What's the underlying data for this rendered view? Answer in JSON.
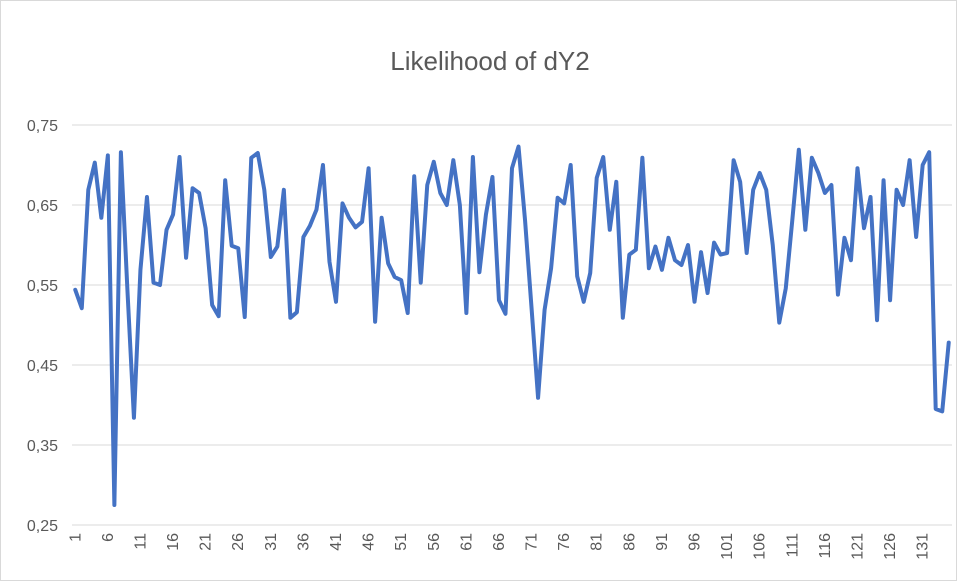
{
  "chart_data": {
    "type": "line",
    "title": "Likelihood of dY2",
    "categories": [
      "1",
      null,
      null,
      null,
      null,
      "6",
      null,
      null,
      null,
      null,
      "11",
      null,
      null,
      null,
      null,
      "16",
      null,
      null,
      null,
      null,
      "21",
      null,
      null,
      null,
      null,
      "26",
      null,
      null,
      null,
      null,
      "31",
      null,
      null,
      null,
      null,
      "36",
      null,
      null,
      null,
      null,
      "41",
      null,
      null,
      null,
      null,
      "46",
      null,
      null,
      null,
      null,
      "51",
      null,
      null,
      null,
      null,
      "56",
      null,
      null,
      null,
      null,
      "61",
      null,
      null,
      null,
      null,
      "66",
      null,
      null,
      null,
      null,
      "71",
      null,
      null,
      null,
      null,
      "76",
      null,
      null,
      null,
      null,
      "81",
      null,
      null,
      null,
      null,
      "86",
      null,
      null,
      null,
      null,
      "91",
      null,
      null,
      null,
      null,
      "96",
      null,
      null,
      null,
      null,
      "101",
      null,
      null,
      null,
      null,
      "106",
      null,
      null,
      null,
      null,
      "111",
      null,
      null,
      null,
      null,
      "116",
      null,
      null,
      null,
      null,
      "121",
      null,
      null,
      null,
      null,
      "126",
      null,
      null,
      null,
      null,
      "131",
      null,
      null,
      null,
      null
    ],
    "series": [
      {
        "name": "Likelihood of dY2",
        "color": "#4472c4",
        "values": [
          0.544,
          0.521,
          0.669,
          0.703,
          0.634,
          0.712,
          0.275,
          0.716,
          0.544,
          0.384,
          0.569,
          0.66,
          0.553,
          0.55,
          0.619,
          0.638,
          0.71,
          0.584,
          0.671,
          0.665,
          0.621,
          0.525,
          0.511,
          0.681,
          0.599,
          0.596,
          0.51,
          0.709,
          0.715,
          0.669,
          0.585,
          0.598,
          0.669,
          0.509,
          0.516,
          0.61,
          0.624,
          0.644,
          0.7,
          0.579,
          0.529,
          0.652,
          0.634,
          0.622,
          0.629,
          0.696,
          0.504,
          0.634,
          0.577,
          0.56,
          0.556,
          0.515,
          0.686,
          0.553,
          0.675,
          0.704,
          0.665,
          0.65,
          0.706,
          0.65,
          0.515,
          0.71,
          0.566,
          0.638,
          0.685,
          0.531,
          0.514,
          0.696,
          0.723,
          0.631,
          0.521,
          0.409,
          0.519,
          0.571,
          0.659,
          0.652,
          0.7,
          0.561,
          0.529,
          0.565,
          0.684,
          0.71,
          0.619,
          0.679,
          0.509,
          0.588,
          0.594,
          0.709,
          0.571,
          0.598,
          0.569,
          0.609,
          0.581,
          0.575,
          0.6,
          0.529,
          0.591,
          0.54,
          0.603,
          0.588,
          0.59,
          0.706,
          0.679,
          0.59,
          0.669,
          0.69,
          0.669,
          0.6,
          0.503,
          0.546,
          0.631,
          0.719,
          0.619,
          0.709,
          0.69,
          0.665,
          0.675,
          0.538,
          0.609,
          0.581,
          0.696,
          0.621,
          0.66,
          0.506,
          0.681,
          0.531,
          0.669,
          0.65,
          0.706,
          0.61,
          0.7,
          0.716,
          0.395,
          0.392,
          0.478
        ]
      }
    ],
    "ylim": [
      0.25,
      0.75
    ],
    "yticks": [
      {
        "value": 0.25,
        "label": "0,25"
      },
      {
        "value": 0.35,
        "label": "0,35"
      },
      {
        "value": 0.45,
        "label": "0,45"
      },
      {
        "value": 0.55,
        "label": "0,55"
      },
      {
        "value": 0.65,
        "label": "0,65"
      },
      {
        "value": 0.75,
        "label": "0,75"
      }
    ],
    "grid": true
  }
}
